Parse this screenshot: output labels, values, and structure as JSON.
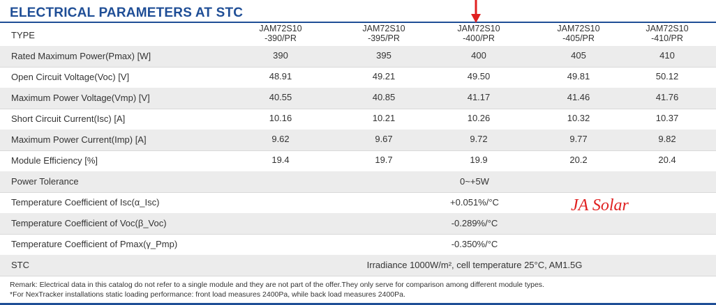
{
  "title": "ELECTRICAL PARAMETERS AT STC",
  "type_label": "TYPE",
  "models": [
    {
      "line1": "JAM72S10",
      "line2": "-390/PR"
    },
    {
      "line1": "JAM72S10",
      "line2": "-395/PR"
    },
    {
      "line1": "JAM72S10",
      "line2": "-400/PR"
    },
    {
      "line1": "JAM72S10",
      "line2": "-405/PR"
    },
    {
      "line1": "JAM72S10",
      "line2": "-410/PR"
    }
  ],
  "rows": [
    {
      "label": "Rated Maximum Power(Pmax) [W]",
      "values": [
        "390",
        "395",
        "400",
        "405",
        "410"
      ]
    },
    {
      "label": "Open Circuit Voltage(Voc) [V]",
      "values": [
        "48.91",
        "49.21",
        "49.50",
        "49.81",
        "50.12"
      ]
    },
    {
      "label": "Maximum Power Voltage(Vmp) [V]",
      "values": [
        "40.55",
        "40.85",
        "41.17",
        "41.46",
        "41.76"
      ]
    },
    {
      "label": "Short Circuit Current(Isc) [A]",
      "values": [
        "10.16",
        "10.21",
        "10.26",
        "10.32",
        "10.37"
      ]
    },
    {
      "label": "Maximum Power Current(Imp) [A]",
      "values": [
        "9.62",
        "9.67",
        "9.72",
        "9.77",
        "9.82"
      ]
    },
    {
      "label": "Module Efficiency [%]",
      "values": [
        "19.4",
        "19.7",
        "19.9",
        "20.2",
        "20.4"
      ]
    }
  ],
  "span_rows": [
    {
      "label": "Power Tolerance",
      "value": "0~+5W"
    },
    {
      "label": "Temperature Coefficient of Isc(α_Isc)",
      "value": "+0.051%/°C"
    },
    {
      "label": "Temperature Coefficient of Voc(β_Voc)",
      "value": "-0.289%/°C"
    },
    {
      "label": "Temperature Coefficient of Pmax(γ_Pmp)",
      "value": "-0.350%/°C"
    },
    {
      "label": "STC",
      "value": "Irradiance 1000W/m²,  cell temperature 25°C, AM1.5G"
    }
  ],
  "watermark": "JA Solar",
  "remarks": [
    "Remark: Electrical data in this catalog do not refer to a single module and they are not part of the offer.They only serve for comparison among different module types.",
    "*For NexTracker installations static loading performance: front load measures 2400Pa, while back load measures 2400Pa."
  ],
  "colors": {
    "title": "#1f4e96",
    "arrow": "#e02020",
    "watermark": "#e02020",
    "row_shade": "#ececec"
  }
}
